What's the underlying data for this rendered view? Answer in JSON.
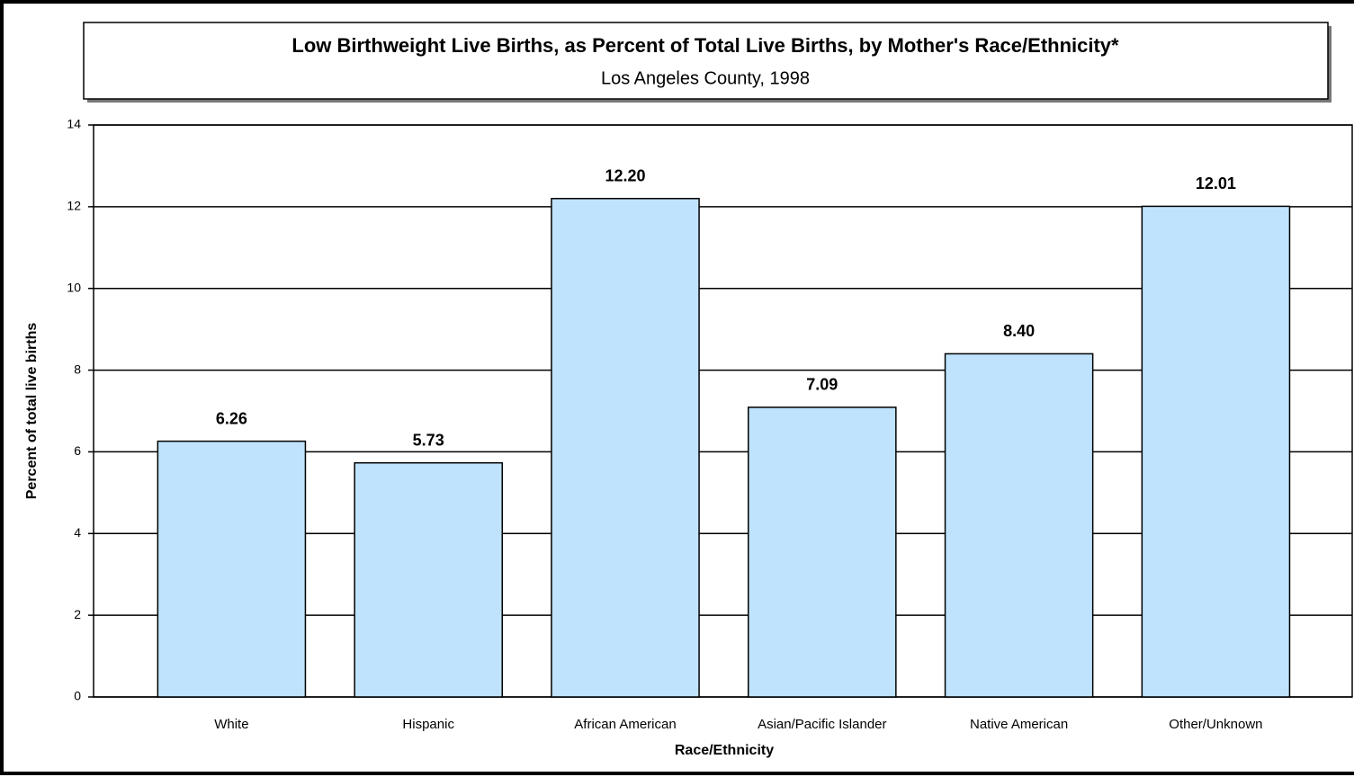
{
  "chart_data": {
    "type": "bar",
    "title": "Low Birthweight Live Births, as Percent of Total Live Births, by Mother's Race/Ethnicity*",
    "subtitle": "Los Angeles County, 1998",
    "x_label": "Race/Ethnicity",
    "y_label": "Percent of total live births",
    "categories": [
      "White",
      "Hispanic",
      "African American",
      "Asian/Pacific Islander",
      "Native American",
      "Other/Unknown"
    ],
    "values": [
      6.26,
      5.73,
      12.2,
      7.09,
      8.4,
      12.01
    ],
    "value_labels": [
      "6.26",
      "5.73",
      "12.20",
      "7.09",
      "8.40",
      "12.01"
    ],
    "color": "#bfe3fc",
    "ylim": [
      0,
      14
    ],
    "yticks": [
      0,
      2,
      4,
      6,
      8,
      10,
      12,
      14
    ],
    "grid": true
  }
}
